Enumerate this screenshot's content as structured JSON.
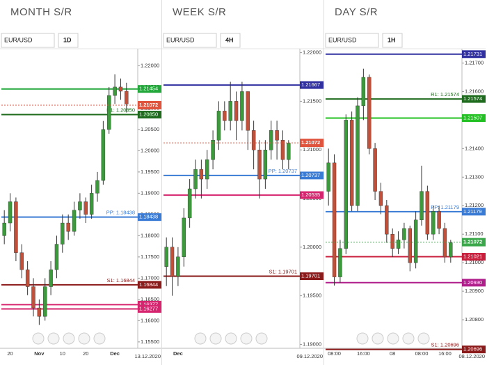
{
  "chart_data": [
    {
      "type": "candlestick",
      "title": "MONTH S/R",
      "symbol": "EUR/USD",
      "timeframe": "1D",
      "date": "13.12.2020",
      "categories": [
        null,
        "20",
        null,
        null,
        null,
        null,
        "Nov",
        null,
        null,
        null,
        "10",
        null,
        null,
        null,
        "20",
        null,
        null,
        null,
        null,
        "Dec",
        null,
        null
      ],
      "candles": [
        [
          1.18,
          1.186,
          1.178,
          1.183
        ],
        [
          1.183,
          1.19,
          1.181,
          1.188
        ],
        [
          1.188,
          1.189,
          1.174,
          1.176
        ],
        [
          1.176,
          1.178,
          1.17,
          1.172
        ],
        [
          1.172,
          1.174,
          1.166,
          1.168
        ],
        [
          1.168,
          1.17,
          1.161,
          1.163
        ],
        [
          1.163,
          1.165,
          1.159,
          1.161
        ],
        [
          1.161,
          1.17,
          1.16,
          1.168
        ],
        [
          1.168,
          1.174,
          1.166,
          1.172
        ],
        [
          1.172,
          1.18,
          1.17,
          1.178
        ],
        [
          1.178,
          1.185,
          1.176,
          1.183
        ],
        [
          1.183,
          1.185,
          1.179,
          1.181
        ],
        [
          1.181,
          1.188,
          1.18,
          1.186
        ],
        [
          1.186,
          1.19,
          1.184,
          1.188
        ],
        [
          1.188,
          1.189,
          1.183,
          1.185
        ],
        [
          1.185,
          1.192,
          1.184,
          1.19
        ],
        [
          1.19,
          1.195,
          1.188,
          1.193
        ],
        [
          1.193,
          1.207,
          1.192,
          1.205
        ],
        [
          1.205,
          1.215,
          1.204,
          1.213
        ],
        [
          1.213,
          1.218,
          1.211,
          1.215
        ],
        [
          1.215,
          1.217,
          1.212,
          1.214
        ],
        [
          1.214,
          1.216,
          1.209,
          1.211
        ]
      ],
      "up_color": "#3c9a3c",
      "down_color": "#c0503a",
      "ylim": [
        1.1535,
        1.224
      ],
      "yticks": [
        {
          "value": 1.155,
          "label": "1.15500"
        },
        {
          "value": 1.16,
          "label": "1.16000"
        },
        {
          "value": 1.165,
          "label": "1.16500"
        },
        {
          "value": 1.17,
          "label": "1.17000"
        },
        {
          "value": 1.175,
          "label": "1.17500"
        },
        {
          "value": 1.18,
          "label": "1.18000"
        },
        {
          "value": 1.185,
          "label": "1.18500"
        },
        {
          "value": 1.19,
          "label": "1.19000"
        },
        {
          "value": 1.195,
          "label": "1.19500"
        },
        {
          "value": 1.2,
          "label": "1.20000"
        },
        {
          "value": 1.205,
          "label": "1.20500"
        },
        {
          "value": 1.21,
          "label": "1.21000"
        },
        {
          "value": 1.215,
          "label": "1.21500"
        },
        {
          "value": 1.22,
          "label": "1.22000"
        }
      ],
      "levels": [
        {
          "value": 1.21454,
          "value_label": "1.21454",
          "color": "#22a83a"
        },
        {
          "value": 1.2085,
          "value_label": "1.20850",
          "text": "R1: 1.20850",
          "color": "#1e6b1e"
        },
        {
          "value": 1.18438,
          "value_label": "1.18438",
          "text": "PP: 1.18438",
          "color": "#3a7bd5"
        },
        {
          "value": 1.16844,
          "value_label": "1.16844",
          "text": "S1: 1.16844",
          "color": "#8b1a1a"
        },
        {
          "value": 1.16377,
          "value_label": "1.16377",
          "color": "#d6246e"
        },
        {
          "value": 1.16277,
          "value_label": "1.16277",
          "color": "#d6246e"
        }
      ],
      "price": {
        "value": 1.21072,
        "value_label": "1.21072",
        "color": "#e0533d"
      }
    },
    {
      "type": "candlestick",
      "title": "WEEK S/R",
      "symbol": "EUR/USD",
      "timeframe": "4H",
      "date": "09.12.2020",
      "categories": [
        null,
        null,
        "Dec",
        null,
        null,
        null,
        null,
        null,
        null,
        null,
        null,
        null,
        null,
        null,
        null,
        null,
        null,
        null,
        null,
        null,
        null,
        null
      ],
      "candles": [
        [
          1.198,
          1.201,
          1.196,
          1.2
        ],
        [
          1.2,
          1.201,
          1.195,
          1.197
        ],
        [
          1.197,
          1.2,
          1.196,
          1.199
        ],
        [
          1.199,
          1.204,
          1.198,
          1.203
        ],
        [
          1.203,
          1.207,
          1.202,
          1.206
        ],
        [
          1.206,
          1.209,
          1.205,
          1.208
        ],
        [
          1.208,
          1.209,
          1.205,
          1.207
        ],
        [
          1.207,
          1.21,
          1.206,
          1.209
        ],
        [
          1.209,
          1.212,
          1.208,
          1.211
        ],
        [
          1.211,
          1.215,
          1.21,
          1.214
        ],
        [
          1.214,
          1.215,
          1.212,
          1.213
        ],
        [
          1.213,
          1.217,
          1.212,
          1.215
        ],
        [
          1.215,
          1.216,
          1.211,
          1.213
        ],
        [
          1.213,
          1.217,
          1.212,
          1.216
        ],
        [
          1.216,
          1.216,
          1.21,
          1.212
        ],
        [
          1.212,
          1.213,
          1.208,
          1.21
        ],
        [
          1.21,
          1.211,
          1.205,
          1.207
        ],
        [
          1.207,
          1.211,
          1.206,
          1.21
        ],
        [
          1.21,
          1.213,
          1.209,
          1.212
        ],
        [
          1.212,
          1.213,
          1.209,
          1.211
        ],
        [
          1.211,
          1.212,
          1.208,
          1.209
        ],
        [
          1.209,
          1.211,
          1.208,
          1.2107
        ]
      ],
      "up_color": "#3c9a3c",
      "down_color": "#c0503a",
      "ylim": [
        1.1896,
        1.2204
      ],
      "yticks": [
        {
          "value": 1.19,
          "label": "1.19000"
        },
        {
          "value": 1.195,
          "label": "1.19500"
        },
        {
          "value": 1.2,
          "label": "1.20000"
        },
        {
          "value": 1.205,
          "label": "1.20500"
        },
        {
          "value": 1.21,
          "label": "1.21000"
        },
        {
          "value": 1.215,
          "label": "1.21500"
        },
        {
          "value": 1.22,
          "label": "1.22000"
        }
      ],
      "levels": [
        {
          "value": 1.21667,
          "value_label": "1.21667",
          "color": "#3030a0"
        },
        {
          "value": 1.20737,
          "value_label": "1.20737",
          "text": "PP: 1.20737",
          "color": "#3a7bd5"
        },
        {
          "value": 1.20535,
          "value_label": "1.20535",
          "color": "#d6246e"
        },
        {
          "value": 1.19701,
          "value_label": "1.19701",
          "text": "S1: 1.19701",
          "color": "#8b1a1a"
        }
      ],
      "price": {
        "value": 1.21072,
        "value_label": "1.21072",
        "color": "#e0533d"
      }
    },
    {
      "type": "candlestick",
      "title": "DAY S/R",
      "symbol": "EUR/USD",
      "timeframe": "1H",
      "date": "08.12.2020",
      "categories": [
        null,
        "08:00",
        null,
        null,
        null,
        null,
        "16:00",
        null,
        null,
        null,
        null,
        "08",
        null,
        null,
        null,
        null,
        "08:00",
        null,
        null,
        null,
        "16:00",
        null
      ],
      "candles": [
        [
          1.2125,
          1.214,
          1.212,
          1.2135
        ],
        [
          1.2135,
          1.2138,
          1.2092,
          1.2095
        ],
        [
          1.2095,
          1.2108,
          1.2093,
          1.2105
        ],
        [
          1.2105,
          1.2152,
          1.2103,
          1.215
        ],
        [
          1.215,
          1.2153,
          1.2118,
          1.212
        ],
        [
          1.212,
          1.2158,
          1.2118,
          1.2155
        ],
        [
          1.2155,
          1.2168,
          1.215,
          1.2165
        ],
        [
          1.2165,
          1.2166,
          1.2138,
          1.214
        ],
        [
          1.214,
          1.2142,
          1.2122,
          1.2125
        ],
        [
          1.2125,
          1.2128,
          1.2117,
          1.212
        ],
        [
          1.212,
          1.2122,
          1.2107,
          1.211
        ],
        [
          1.211,
          1.2112,
          1.2102,
          1.2105
        ],
        [
          1.2105,
          1.2111,
          1.2103,
          1.2108
        ],
        [
          1.2108,
          1.2114,
          1.2105,
          1.2112
        ],
        [
          1.2112,
          1.2113,
          1.2097,
          1.21
        ],
        [
          1.21,
          1.2118,
          1.2098,
          1.2115
        ],
        [
          1.2115,
          1.2134,
          1.2113,
          1.2125
        ],
        [
          1.2125,
          1.2127,
          1.2108,
          1.211
        ],
        [
          1.211,
          1.212,
          1.2108,
          1.2118
        ],
        [
          1.2118,
          1.212,
          1.211,
          1.2112
        ],
        [
          1.2112,
          1.2114,
          1.21,
          1.2102
        ],
        [
          1.2102,
          1.2108,
          1.21,
          1.2107
        ]
      ],
      "up_color": "#3c9a3c",
      "down_color": "#c0503a",
      "ylim": [
        1.207,
        1.2175
      ],
      "yticks": [
        {
          "value": 1.208,
          "label": "1.20800"
        },
        {
          "value": 1.209,
          "label": "1.20900"
        },
        {
          "value": 1.21,
          "label": "1.21000"
        },
        {
          "value": 1.211,
          "label": "1.21100"
        },
        {
          "value": 1.212,
          "label": "1.21200"
        },
        {
          "value": 1.213,
          "label": "1.21300"
        },
        {
          "value": 1.214,
          "label": "1.21400"
        },
        {
          "value": 1.215,
          "label": "1.21500"
        },
        {
          "value": 1.216,
          "label": "1.21600"
        },
        {
          "value": 1.217,
          "label": "1.21700"
        }
      ],
      "levels": [
        {
          "value": 1.21731,
          "value_label": "1.21731",
          "color": "#3030a0"
        },
        {
          "value": 1.21574,
          "value_label": "1.21574",
          "text": "R1: 1.21574",
          "color": "#1e6b1e"
        },
        {
          "value": 1.21507,
          "value_label": "1.21507",
          "color": "#22c022"
        },
        {
          "value": 1.21179,
          "value_label": "1.21179",
          "text": "PP: 1.21179",
          "color": "#3a7bd5"
        },
        {
          "value": 1.21021,
          "value_label": "1.21021",
          "color": "#c81e3c"
        },
        {
          "value": 1.2093,
          "value_label": "1.20930",
          "color": "#b01e8c"
        },
        {
          "value": 1.20696,
          "value_label": "1.20696",
          "text": "S1: 1.20696",
          "color": "#8b1a1a"
        }
      ],
      "price": {
        "value": 1.21072,
        "value_label": "1.21072",
        "color": "#3aa84a"
      }
    }
  ]
}
